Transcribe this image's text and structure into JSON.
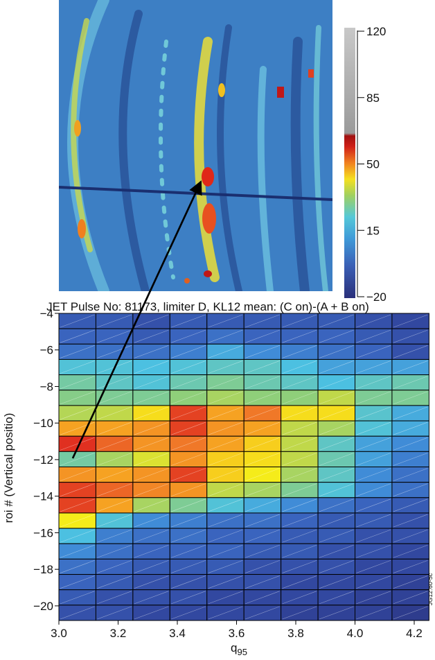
{
  "image_colorbar": {
    "ylim": [
      -20,
      120
    ],
    "yticks": [
      {
        "value": -20,
        "label": "−20"
      },
      15,
      50,
      85,
      120
    ]
  },
  "chart_data": {
    "type": "heatmap",
    "title": "JET Pulse No: 81173, limiter D, KL12 mean: (C on)-(A + B on)",
    "xlabel": "q",
    "xlabel_sub": "95",
    "ylabel": "roi # (Vertical positio)",
    "figure_id": "JG12.60-5c",
    "xlim": [
      3.0,
      4.25
    ],
    "xticks": [
      {
        "value": 3,
        "label": "3.0"
      },
      3.2,
      3.4,
      3.6,
      3.8,
      {
        "value": 4,
        "label": "4.0"
      },
      4.2
    ],
    "ylim": [
      -20.8,
      -4
    ],
    "yticks": [
      {
        "value": -4,
        "label": "−4"
      },
      {
        "value": -6,
        "label": "−6"
      },
      {
        "value": -8,
        "label": "−8"
      },
      {
        "value": -10,
        "label": "−10"
      },
      {
        "value": -12,
        "label": "−12"
      },
      {
        "value": -14,
        "label": "−14"
      },
      {
        "value": -16,
        "label": "−16"
      },
      {
        "value": -18,
        "label": "−18"
      },
      {
        "value": -20,
        "label": "−20"
      }
    ],
    "values": [
      [
        -8,
        -8,
        -10,
        -8,
        -8,
        -8,
        -8,
        -8,
        -10,
        -12
      ],
      [
        -6,
        -6,
        -8,
        -6,
        -4,
        -6,
        -6,
        -6,
        -8,
        -10
      ],
      [
        -4,
        -4,
        -4,
        -2,
        3,
        0,
        -2,
        -4,
        -6,
        -10
      ],
      [
        6,
        6,
        5,
        6,
        8,
        8,
        5,
        2,
        2,
        2
      ],
      [
        11,
        8,
        6,
        10,
        12,
        10,
        8,
        5,
        8,
        10
      ],
      [
        13,
        12,
        12,
        14,
        16,
        14,
        14,
        18,
        12,
        12
      ],
      [
        17,
        18,
        23,
        33,
        27,
        30,
        23,
        23,
        7,
        3
      ],
      [
        27,
        27,
        28,
        33,
        28,
        27,
        18,
        16,
        6,
        3
      ],
      [
        34,
        31,
        28,
        30,
        27,
        24,
        18,
        8,
        2,
        0
      ],
      [
        11,
        16,
        20,
        28,
        24,
        23,
        18,
        10,
        2,
        -2
      ],
      [
        28,
        27,
        28,
        33,
        24,
        22,
        16,
        8,
        0,
        -4
      ],
      [
        33,
        31,
        29,
        28,
        18,
        16,
        12,
        6,
        0,
        -4
      ],
      [
        33,
        27,
        16,
        12,
        6,
        3,
        0,
        -4,
        -6,
        -8
      ],
      [
        22,
        6,
        0,
        -2,
        -4,
        -4,
        -6,
        -8,
        -8,
        -10
      ],
      [
        5,
        -2,
        -4,
        -4,
        -6,
        -6,
        -8,
        -8,
        -10,
        -10
      ],
      [
        0,
        -4,
        -6,
        -6,
        -6,
        -8,
        -8,
        -10,
        -10,
        -12
      ],
      [
        -4,
        -6,
        -8,
        -8,
        -8,
        -10,
        -10,
        -10,
        -12,
        -12
      ],
      [
        -6,
        -8,
        -10,
        -10,
        -10,
        -10,
        -12,
        -12,
        -12,
        -14
      ],
      [
        -8,
        -10,
        -10,
        -10,
        -12,
        -12,
        -12,
        -12,
        -14,
        -14
      ],
      [
        -10,
        -10,
        -12,
        -12,
        -12,
        -12,
        -14,
        -14,
        -14,
        -16
      ]
    ]
  }
}
